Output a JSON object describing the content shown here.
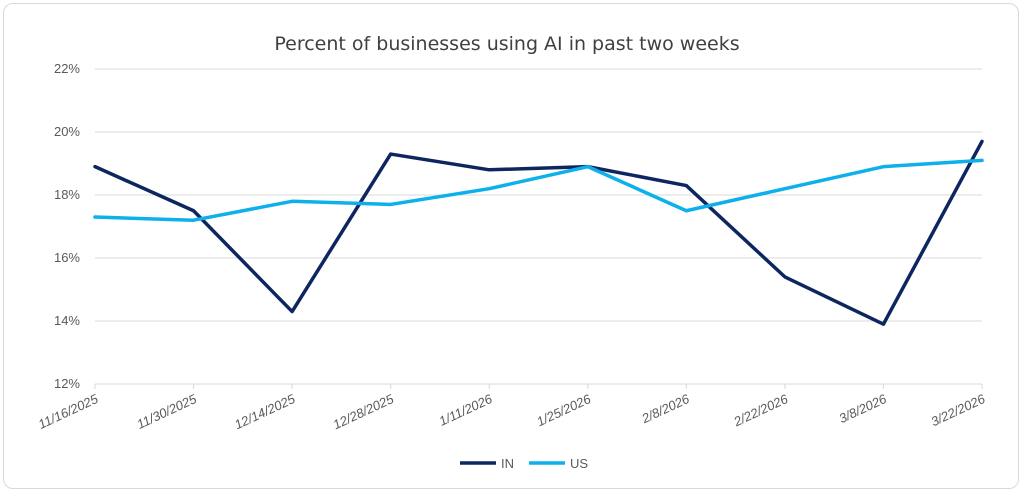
{
  "chart_data": {
    "type": "line",
    "title": "Percent of businesses using AI in past two weeks",
    "x": [
      "11/16/2025",
      "11/30/2025",
      "12/14/2025",
      "12/28/2025",
      "1/11/2026",
      "1/25/2026",
      "2/8/2026",
      "2/22/2026",
      "3/8/2026",
      "3/22/2026"
    ],
    "series": [
      {
        "name": "IN",
        "color": "#0e2660",
        "values": [
          18.9,
          17.5,
          14.3,
          19.3,
          18.8,
          18.9,
          18.3,
          15.4,
          13.9,
          19.7
        ]
      },
      {
        "name": "US",
        "color": "#0db0ea",
        "values": [
          17.3,
          17.2,
          17.8,
          17.7,
          18.2,
          18.9,
          17.5,
          18.2,
          18.9,
          19.1
        ]
      }
    ],
    "ylim": [
      12,
      22
    ],
    "yticks": [
      "12%",
      "14%",
      "16%",
      "18%",
      "20%",
      "22%"
    ],
    "ytick_values": [
      12,
      14,
      16,
      18,
      20,
      22
    ],
    "grid": true,
    "legend": "bottom",
    "xlabel": "",
    "ylabel": ""
  }
}
